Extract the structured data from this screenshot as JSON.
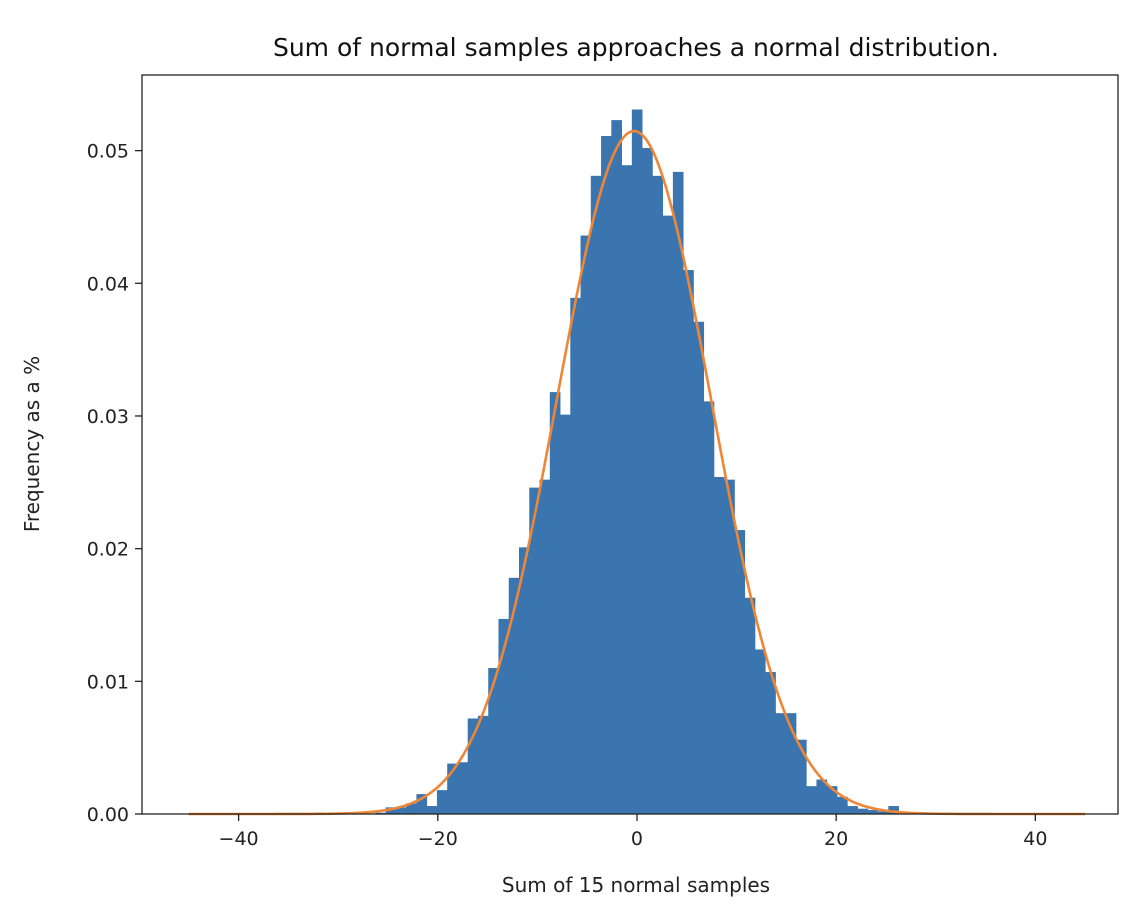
{
  "chart_data": {
    "type": "bar",
    "title": "Sum of normal samples approaches a normal distribution.",
    "xlabel": "Sum of 15 normal samples",
    "ylabel": "Frequency as a %",
    "xlim": [
      -49.7,
      48.3
    ],
    "ylim": [
      0,
      0.0557
    ],
    "x_ticks": [
      -40,
      -20,
      0,
      20,
      40
    ],
    "x_tick_labels": [
      "−40",
      "−20",
      "0",
      "20",
      "40"
    ],
    "y_ticks": [
      0,
      0.01,
      0.02,
      0.03,
      0.04,
      0.05
    ],
    "y_tick_labels": [
      "0.00",
      "0.01",
      "0.02",
      "0.03",
      "0.04",
      "0.05"
    ],
    "grid": false,
    "histogram": {
      "bin_width": 1.03,
      "x": [
        -25.75,
        -24.72,
        -23.69,
        -22.66,
        -21.63,
        -20.6,
        -19.57,
        -18.54,
        -17.51,
        -16.48,
        -15.45,
        -14.42,
        -13.39,
        -12.36,
        -11.33,
        -10.3,
        -9.27,
        -8.24,
        -7.21,
        -6.18,
        -5.15,
        -4.12,
        -3.09,
        -2.06,
        -1.03,
        0,
        1.03,
        2.06,
        3.09,
        4.12,
        5.15,
        6.18,
        7.21,
        8.24,
        9.27,
        10.3,
        11.33,
        12.36,
        13.39,
        14.42,
        15.45,
        16.48,
        17.51,
        18.54,
        19.57,
        20.6,
        21.63,
        22.66,
        23.69,
        24.72,
        25.75
      ],
      "values": [
        0.0001,
        0.0005,
        0.0005,
        0.0008,
        0.0015,
        0.0006,
        0.0018,
        0.0038,
        0.0039,
        0.0072,
        0.0074,
        0.011,
        0.0147,
        0.0178,
        0.0201,
        0.0246,
        0.0252,
        0.0318,
        0.0301,
        0.0389,
        0.0436,
        0.0481,
        0.0511,
        0.0523,
        0.0489,
        0.0531,
        0.0502,
        0.0481,
        0.0451,
        0.0484,
        0.041,
        0.0371,
        0.0311,
        0.0254,
        0.0252,
        0.0214,
        0.0163,
        0.0124,
        0.0107,
        0.0076,
        0.0076,
        0.0056,
        0.0021,
        0.0026,
        0.0021,
        0.0013,
        0.0006,
        0.0004,
        0.0003,
        0.0002,
        0.0006
      ],
      "color": "#3b75af"
    },
    "curve": {
      "type": "normal-pdf",
      "mean": -0.3,
      "std": 7.75,
      "x_range": [
        -45,
        45
      ],
      "color": "#ef8636"
    }
  }
}
